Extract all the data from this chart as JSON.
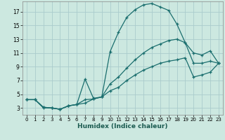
{
  "xlabel": "Humidex (Indice chaleur)",
  "background_color": "#cce8e0",
  "grid_color": "#aacccc",
  "line_color": "#1a6e6e",
  "xlim": [
    -0.5,
    23.5
  ],
  "ylim": [
    2.0,
    18.5
  ],
  "xticks": [
    0,
    1,
    2,
    3,
    4,
    5,
    6,
    7,
    8,
    9,
    10,
    11,
    12,
    13,
    14,
    15,
    16,
    17,
    18,
    19,
    20,
    21,
    22,
    23
  ],
  "yticks": [
    3,
    5,
    7,
    9,
    11,
    13,
    15,
    17
  ],
  "curve1_x": [
    0,
    1,
    2,
    3,
    4,
    5,
    6,
    7,
    8,
    9,
    10,
    11,
    12,
    13,
    14,
    15,
    16,
    17,
    18,
    19,
    20,
    21,
    22,
    23
  ],
  "curve1_y": [
    4.2,
    4.2,
    3.1,
    3.0,
    2.8,
    3.3,
    3.5,
    7.2,
    4.4,
    4.6,
    11.2,
    14.0,
    16.2,
    17.3,
    18.0,
    18.2,
    17.7,
    17.2,
    15.2,
    12.5,
    11.0,
    10.7,
    11.3,
    9.5
  ],
  "curve2_x": [
    0,
    1,
    2,
    3,
    4,
    5,
    6,
    7,
    8,
    9,
    10,
    11,
    12,
    13,
    14,
    15,
    16,
    17,
    18,
    19,
    20,
    21,
    22,
    23
  ],
  "curve2_y": [
    4.2,
    4.2,
    3.1,
    3.0,
    2.8,
    3.3,
    3.5,
    3.7,
    4.3,
    4.6,
    6.5,
    7.5,
    8.8,
    10.0,
    11.0,
    11.8,
    12.3,
    12.8,
    13.0,
    12.5,
    9.5,
    9.5,
    9.8,
    9.5
  ],
  "curve3_x": [
    0,
    1,
    2,
    3,
    4,
    5,
    6,
    7,
    8,
    9,
    10,
    11,
    12,
    13,
    14,
    15,
    16,
    17,
    18,
    19,
    20,
    21,
    22,
    23
  ],
  "curve3_y": [
    4.2,
    4.2,
    3.0,
    3.0,
    2.8,
    3.3,
    3.5,
    4.2,
    4.3,
    4.6,
    5.5,
    6.0,
    7.0,
    7.8,
    8.5,
    9.0,
    9.5,
    9.8,
    10.0,
    10.3,
    7.5,
    7.8,
    8.2,
    9.5
  ],
  "tick_fontsize": 5.5,
  "xlabel_fontsize": 6.5,
  "xlabel_color": "#1a5a50",
  "spine_color": "#888888"
}
